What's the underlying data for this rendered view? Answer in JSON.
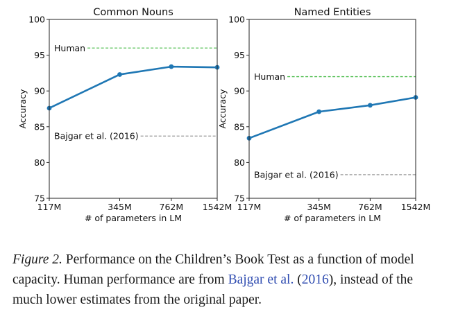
{
  "chart_data": [
    {
      "type": "line",
      "title": "Common Nouns",
      "ylabel": "Accuracy",
      "xlabel": "# of parameters in LM",
      "categories": [
        "117M",
        "345M",
        "762M",
        "1542M"
      ],
      "x_positions": [
        117,
        345,
        762,
        1542
      ],
      "x_scale": "log",
      "xlim": [
        117,
        1542
      ],
      "ylim": [
        75,
        100
      ],
      "yticks": [
        75,
        80,
        85,
        90,
        95,
        100
      ],
      "series": [
        {
          "values": [
            87.6,
            92.3,
            93.4,
            93.3
          ],
          "color": "#1f77b4"
        }
      ],
      "reference_lines": [
        {
          "label": "Human",
          "value": 96.0,
          "color": "#4dbd4d"
        },
        {
          "label": "Bajgar et al. (2016)",
          "value": 83.7,
          "color": "#999999"
        }
      ]
    },
    {
      "type": "line",
      "title": "Named Entities",
      "ylabel": "Accuracy",
      "xlabel": "# of parameters in LM",
      "categories": [
        "117M",
        "345M",
        "762M",
        "1542M"
      ],
      "x_positions": [
        117,
        345,
        762,
        1542
      ],
      "x_scale": "log",
      "xlim": [
        117,
        1542
      ],
      "ylim": [
        75,
        100
      ],
      "yticks": [
        75,
        80,
        85,
        90,
        95,
        100
      ],
      "series": [
        {
          "values": [
            83.4,
            87.1,
            88.0,
            89.1
          ],
          "color": "#1f77b4"
        }
      ],
      "reference_lines": [
        {
          "label": "Human",
          "value": 92.0,
          "color": "#4dbd4d"
        },
        {
          "label": "Bajgar et al. (2016)",
          "value": 78.3,
          "color": "#999999"
        }
      ]
    }
  ],
  "caption": {
    "figure_label": "Figure 2.",
    "text_before": " Performance on the Children’s Book Test as a function of model capacity. Human performance are from ",
    "citation_author": "Bajgar et al.",
    "citation_open": " (",
    "citation_year": "2016",
    "citation_close": ")",
    "text_after": ", instead of the much lower estimates from the original paper."
  }
}
